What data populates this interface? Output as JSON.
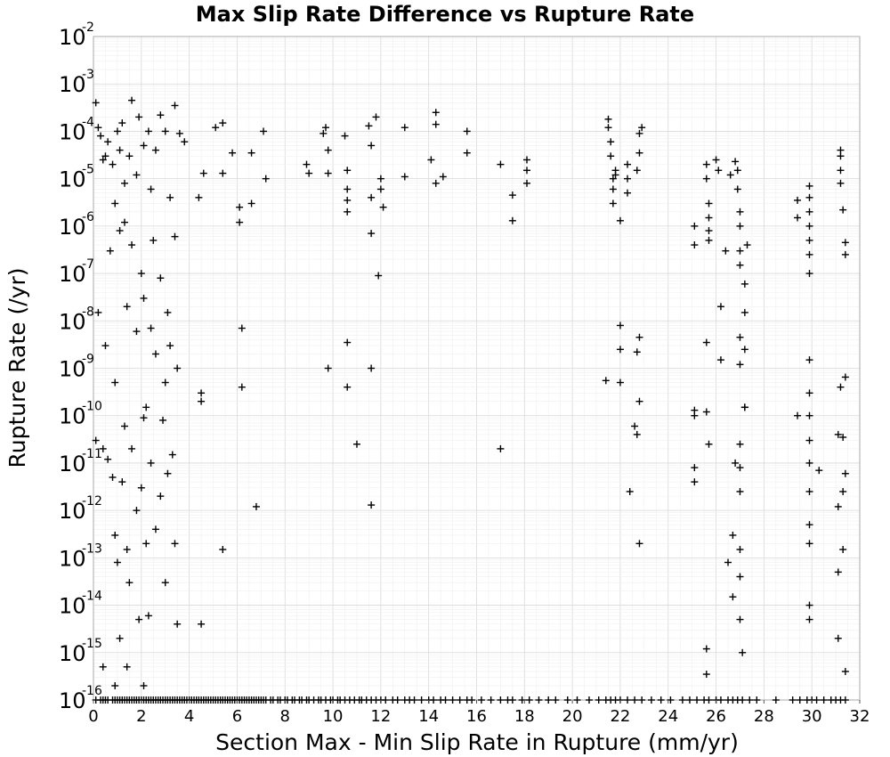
{
  "chart_data": {
    "type": "scatter",
    "title": "Max Slip Rate Difference vs Rupture Rate",
    "xlabel": "Section Max - Min Slip Rate in Rupture (mm/yr)",
    "ylabel": "Rupture Rate (/yr)",
    "xlim": [
      0,
      32
    ],
    "ylim": [
      1e-16,
      0.01
    ],
    "yscale": "log",
    "grid": true,
    "marker": "plus",
    "marker_color": "#000000",
    "xticks": [
      "0",
      "2",
      "4",
      "6",
      "8",
      "10",
      "12",
      "14",
      "16",
      "18",
      "20",
      "22",
      "24",
      "26",
      "28",
      "30",
      "32"
    ],
    "yticks": [
      {
        "base": "10",
        "exp": "-2"
      },
      {
        "base": "10",
        "exp": "-3"
      },
      {
        "base": "10",
        "exp": "-4"
      },
      {
        "base": "10",
        "exp": "-5"
      },
      {
        "base": "10",
        "exp": "-6"
      },
      {
        "base": "10",
        "exp": "-7"
      },
      {
        "base": "10",
        "exp": "-8"
      },
      {
        "base": "10",
        "exp": "-9"
      },
      {
        "base": "10",
        "exp": "-10"
      },
      {
        "base": "10",
        "exp": "-11"
      },
      {
        "base": "10",
        "exp": "-12"
      },
      {
        "base": "10",
        "exp": "-13"
      },
      {
        "base": "10",
        "exp": "-14"
      },
      {
        "base": "10",
        "exp": "-15"
      },
      {
        "base": "10",
        "exp": "-16"
      }
    ],
    "points": [
      [
        0.1,
        0.0004
      ],
      [
        0.2,
        0.00012
      ],
      [
        0.3,
        8e-05
      ],
      [
        0.4,
        2.5e-05
      ],
      [
        0.5,
        3e-05
      ],
      [
        0.6,
        6e-05
      ],
      [
        0.8,
        2e-05
      ],
      [
        0.9,
        3e-06
      ],
      [
        1.0,
        0.0001
      ],
      [
        1.1,
        4e-05
      ],
      [
        1.2,
        0.00015
      ],
      [
        1.3,
        8e-06
      ],
      [
        1.5,
        3e-05
      ],
      [
        1.6,
        0.00045
      ],
      [
        1.8,
        1.2e-05
      ],
      [
        1.9,
        0.0002
      ],
      [
        2.1,
        5e-05
      ],
      [
        2.3,
        0.0001
      ],
      [
        2.4,
        6e-06
      ],
      [
        2.6,
        4e-05
      ],
      [
        2.8,
        0.00022
      ],
      [
        3.0,
        0.0001
      ],
      [
        3.2,
        4e-06
      ],
      [
        3.4,
        0.00035
      ],
      [
        3.6,
        9e-05
      ],
      [
        3.8,
        6e-05
      ],
      [
        0.2,
        1.5e-08
      ],
      [
        0.5,
        3e-09
      ],
      [
        0.7,
        3e-07
      ],
      [
        0.9,
        5e-10
      ],
      [
        1.1,
        8e-07
      ],
      [
        1.3,
        1.2e-06
      ],
      [
        1.4,
        2e-08
      ],
      [
        1.6,
        4e-07
      ],
      [
        1.8,
        6e-09
      ],
      [
        2.0,
        1e-07
      ],
      [
        2.1,
        3e-08
      ],
      [
        2.2,
        1.5e-10
      ],
      [
        2.4,
        7e-09
      ],
      [
        2.5,
        5e-07
      ],
      [
        2.6,
        2e-09
      ],
      [
        2.8,
        8e-08
      ],
      [
        3.0,
        5e-10
      ],
      [
        3.1,
        1.5e-08
      ],
      [
        3.2,
        3e-09
      ],
      [
        3.4,
        6e-07
      ],
      [
        3.5,
        1e-09
      ],
      [
        0.1,
        3e-11
      ],
      [
        0.4,
        2e-11
      ],
      [
        0.6,
        1.2e-11
      ],
      [
        0.8,
        5e-12
      ],
      [
        0.9,
        3e-13
      ],
      [
        1.0,
        8e-14
      ],
      [
        1.1,
        2e-15
      ],
      [
        1.2,
        4e-12
      ],
      [
        1.3,
        6e-11
      ],
      [
        1.4,
        1.5e-13
      ],
      [
        1.5,
        3e-14
      ],
      [
        1.6,
        2e-11
      ],
      [
        1.8,
        1e-12
      ],
      [
        1.9,
        5e-15
      ],
      [
        2.0,
        3e-12
      ],
      [
        2.1,
        9e-11
      ],
      [
        2.2,
        2e-13
      ],
      [
        2.3,
        6e-15
      ],
      [
        2.4,
        1e-11
      ],
      [
        2.6,
        4e-13
      ],
      [
        2.8,
        2e-12
      ],
      [
        2.9,
        8e-11
      ],
      [
        3.0,
        3e-14
      ],
      [
        3.1,
        6e-12
      ],
      [
        3.3,
        1.5e-11
      ],
      [
        3.4,
        2e-13
      ],
      [
        3.5,
        4e-15
      ],
      [
        0.4,
        5e-16
      ],
      [
        0.9,
        2e-16
      ],
      [
        1.4,
        5e-16
      ],
      [
        2.1,
        2e-16
      ],
      [
        4.5,
        4e-15
      ],
      [
        4.4,
        4e-06
      ],
      [
        4.6,
        1.3e-05
      ],
      [
        5.1,
        0.00012
      ],
      [
        5.4,
        0.00015
      ],
      [
        5.4,
        1.3e-05
      ],
      [
        5.8,
        3.5e-05
      ],
      [
        6.1,
        2.5e-06
      ],
      [
        6.1,
        1.2e-06
      ],
      [
        6.2,
        7e-09
      ],
      [
        6.2,
        4e-10
      ],
      [
        6.6,
        3e-06
      ],
      [
        6.6,
        3.5e-05
      ],
      [
        6.8,
        1.2e-12
      ],
      [
        7.1,
        0.0001
      ],
      [
        7.2,
        1e-05
      ],
      [
        5.4,
        1.5e-13
      ],
      [
        4.5,
        3e-10
      ],
      [
        4.5,
        2e-10
      ],
      [
        8.9,
        2e-05
      ],
      [
        9.0,
        1.3e-05
      ],
      [
        9.6,
        9e-05
      ],
      [
        9.7,
        0.00012
      ],
      [
        9.8,
        1.3e-05
      ],
      [
        9.8,
        4e-05
      ],
      [
        9.8,
        1e-09
      ],
      [
        10.5,
        8e-05
      ],
      [
        10.6,
        1.5e-05
      ],
      [
        10.6,
        6e-06
      ],
      [
        10.6,
        3.5e-06
      ],
      [
        10.6,
        2e-06
      ],
      [
        10.6,
        3.5e-09
      ],
      [
        10.6,
        4e-10
      ],
      [
        11.0,
        2.5e-11
      ],
      [
        11.5,
        0.00013
      ],
      [
        11.6,
        5e-05
      ],
      [
        11.6,
        4e-06
      ],
      [
        11.6,
        7e-07
      ],
      [
        11.6,
        1e-09
      ],
      [
        11.6,
        1.3e-12
      ],
      [
        11.8,
        0.0002
      ],
      [
        11.9,
        9e-08
      ],
      [
        12.0,
        1e-05
      ],
      [
        12.1,
        2.5e-06
      ],
      [
        12.0,
        6e-06
      ],
      [
        13.0,
        0.00012
      ],
      [
        13.0,
        1.1e-05
      ],
      [
        14.1,
        2.5e-05
      ],
      [
        14.3,
        0.00025
      ],
      [
        14.3,
        8e-06
      ],
      [
        14.3,
        0.00014
      ],
      [
        14.6,
        1.1e-05
      ],
      [
        15.6,
        0.0001
      ],
      [
        15.6,
        3.5e-05
      ],
      [
        17.0,
        2e-05
      ],
      [
        17.0,
        2e-11
      ],
      [
        17.5,
        1.3e-06
      ],
      [
        17.5,
        4.5e-06
      ],
      [
        18.1,
        1.5e-05
      ],
      [
        18.1,
        8e-06
      ],
      [
        18.1,
        2.5e-05
      ],
      [
        21.5,
        0.00018
      ],
      [
        21.5,
        0.00012
      ],
      [
        21.6,
        6e-05
      ],
      [
        21.6,
        3e-05
      ],
      [
        21.7,
        1e-05
      ],
      [
        21.7,
        6e-06
      ],
      [
        21.7,
        3e-06
      ],
      [
        21.8,
        1.5e-05
      ],
      [
        21.8,
        1.2e-05
      ],
      [
        22.0,
        1.3e-06
      ],
      [
        22.0,
        8e-09
      ],
      [
        22.0,
        2.5e-09
      ],
      [
        22.0,
        5e-10
      ],
      [
        21.4,
        5.5e-10
      ],
      [
        22.3,
        2e-05
      ],
      [
        22.3,
        1e-05
      ],
      [
        22.3,
        5e-06
      ],
      [
        22.4,
        2.5e-12
      ],
      [
        22.6,
        6e-11
      ],
      [
        22.7,
        4e-11
      ],
      [
        22.8,
        2e-10
      ],
      [
        22.7,
        1.5e-05
      ],
      [
        22.8,
        3.5e-05
      ],
      [
        22.8,
        9e-05
      ],
      [
        22.9,
        0.00012
      ],
      [
        22.8,
        4.5e-09
      ],
      [
        22.7,
        2.2e-09
      ],
      [
        22.8,
        2e-13
      ],
      [
        25.1,
        1e-06
      ],
      [
        25.1,
        4e-07
      ],
      [
        25.1,
        1.3e-10
      ],
      [
        25.1,
        1e-10
      ],
      [
        25.1,
        8e-12
      ],
      [
        25.1,
        4e-12
      ],
      [
        25.6,
        1e-05
      ],
      [
        25.6,
        2e-05
      ],
      [
        25.7,
        3e-06
      ],
      [
        25.7,
        1.5e-06
      ],
      [
        25.7,
        8e-07
      ],
      [
        25.7,
        5e-07
      ],
      [
        25.6,
        3.5e-09
      ],
      [
        25.6,
        1.2e-10
      ],
      [
        25.7,
        2.5e-11
      ],
      [
        25.6,
        1.2e-15
      ],
      [
        25.6,
        3.5e-16
      ],
      [
        26.0,
        2.5e-05
      ],
      [
        26.1,
        1.5e-05
      ],
      [
        26.2,
        2e-08
      ],
      [
        26.2,
        1.5e-09
      ],
      [
        26.4,
        3e-07
      ],
      [
        26.5,
        8e-14
      ],
      [
        26.6,
        1.2e-05
      ],
      [
        26.7,
        1.5e-14
      ],
      [
        26.7,
        3e-13
      ],
      [
        26.8,
        1e-11
      ],
      [
        26.8,
        2.3e-05
      ],
      [
        26.9,
        1.5e-05
      ],
      [
        26.9,
        6e-06
      ],
      [
        27.0,
        2e-06
      ],
      [
        27.0,
        1e-06
      ],
      [
        27.0,
        3e-07
      ],
      [
        27.0,
        1.5e-07
      ],
      [
        27.0,
        4.5e-09
      ],
      [
        27.0,
        1.2e-09
      ],
      [
        27.0,
        2.5e-11
      ],
      [
        27.0,
        8e-12
      ],
      [
        27.0,
        2.5e-12
      ],
      [
        27.0,
        1.5e-13
      ],
      [
        27.0,
        4e-14
      ],
      [
        27.0,
        5e-15
      ],
      [
        27.1,
        1e-15
      ],
      [
        27.2,
        1.5e-10
      ],
      [
        27.2,
        2.5e-09
      ],
      [
        27.2,
        1.5e-10
      ],
      [
        27.2,
        6e-08
      ],
      [
        27.2,
        1.5e-08
      ],
      [
        27.3,
        4e-07
      ],
      [
        29.4,
        3.5e-06
      ],
      [
        29.4,
        1.5e-06
      ],
      [
        29.4,
        1e-10
      ],
      [
        29.9,
        7e-06
      ],
      [
        29.9,
        4e-06
      ],
      [
        29.9,
        2e-06
      ],
      [
        29.9,
        1e-06
      ],
      [
        29.9,
        5e-07
      ],
      [
        29.9,
        2.5e-07
      ],
      [
        29.9,
        1e-07
      ],
      [
        29.9,
        1.5e-09
      ],
      [
        29.9,
        3e-10
      ],
      [
        29.9,
        1e-10
      ],
      [
        29.9,
        3e-11
      ],
      [
        29.9,
        1e-11
      ],
      [
        29.9,
        2.5e-12
      ],
      [
        29.9,
        5e-13
      ],
      [
        29.9,
        2e-13
      ],
      [
        29.9,
        1e-14
      ],
      [
        29.9,
        5e-15
      ],
      [
        30.3,
        7e-12
      ],
      [
        31.1,
        4e-11
      ],
      [
        31.1,
        1.2e-12
      ],
      [
        31.1,
        5e-14
      ],
      [
        31.1,
        2e-15
      ],
      [
        31.2,
        4e-05
      ],
      [
        31.2,
        1.5e-05
      ],
      [
        31.2,
        8e-06
      ],
      [
        31.2,
        3e-05
      ],
      [
        31.2,
        4e-10
      ],
      [
        31.3,
        2.2e-06
      ],
      [
        31.3,
        2.5e-12
      ],
      [
        31.3,
        1.5e-13
      ],
      [
        31.4,
        4.5e-07
      ],
      [
        31.4,
        2.5e-07
      ],
      [
        31.3,
        3.5e-11
      ],
      [
        31.4,
        6.5e-10
      ],
      [
        31.4,
        6e-12
      ],
      [
        31.4,
        4e-16
      ]
    ],
    "floor_x": [
      0.1,
      0.3,
      0.4,
      0.5,
      0.6,
      0.8,
      0.9,
      1.0,
      1.1,
      1.2,
      1.3,
      1.4,
      1.5,
      1.6,
      1.7,
      1.8,
      1.9,
      2.0,
      2.1,
      2.2,
      2.3,
      2.4,
      2.5,
      2.6,
      2.7,
      2.8,
      2.9,
      3.0,
      3.1,
      3.2,
      3.3,
      3.4,
      3.5,
      3.6,
      3.7,
      3.8,
      3.9,
      4.0,
      4.1,
      4.2,
      4.3,
      4.4,
      4.5,
      4.6,
      4.7,
      4.8,
      4.9,
      5.0,
      5.1,
      5.2,
      5.3,
      5.4,
      5.5,
      5.6,
      5.7,
      5.8,
      5.9,
      6.0,
      6.1,
      6.2,
      6.3,
      6.4,
      6.5,
      6.6,
      6.7,
      6.8,
      6.9,
      7.0,
      7.1,
      7.2,
      7.4,
      7.5,
      7.7,
      7.8,
      8.0,
      8.1,
      8.3,
      8.4,
      8.6,
      8.7,
      8.9,
      9.0,
      9.2,
      9.4,
      9.5,
      9.7,
      9.9,
      10.0,
      10.2,
      10.3,
      10.5,
      10.7,
      10.9,
      11.1,
      11.2,
      11.4,
      11.6,
      11.8,
      12.0,
      12.2,
      12.5,
      12.7,
      13.0,
      13.2,
      13.4,
      13.7,
      14.0,
      14.2,
      14.5,
      14.7,
      15.0,
      15.3,
      15.6,
      15.8,
      16.2,
      16.6,
      17.0,
      17.3,
      17.5,
      17.9,
      18.2,
      18.6,
      19.0,
      19.3,
      19.8,
      20.2,
      20.7,
      21.1,
      21.4,
      21.6,
      21.8,
      22.0,
      22.3,
      22.6,
      22.9,
      23.3,
      23.7,
      24.1,
      24.6,
      24.9,
      25.2,
      25.5,
      25.7,
      26.0,
      26.2,
      26.5,
      26.7,
      26.9,
      27.1,
      27.4,
      27.7,
      28.5,
      29.2,
      29.5,
      29.8,
      30.0,
      30.2,
      30.5,
      30.8,
      31.0,
      31.2,
      31.4
    ]
  }
}
